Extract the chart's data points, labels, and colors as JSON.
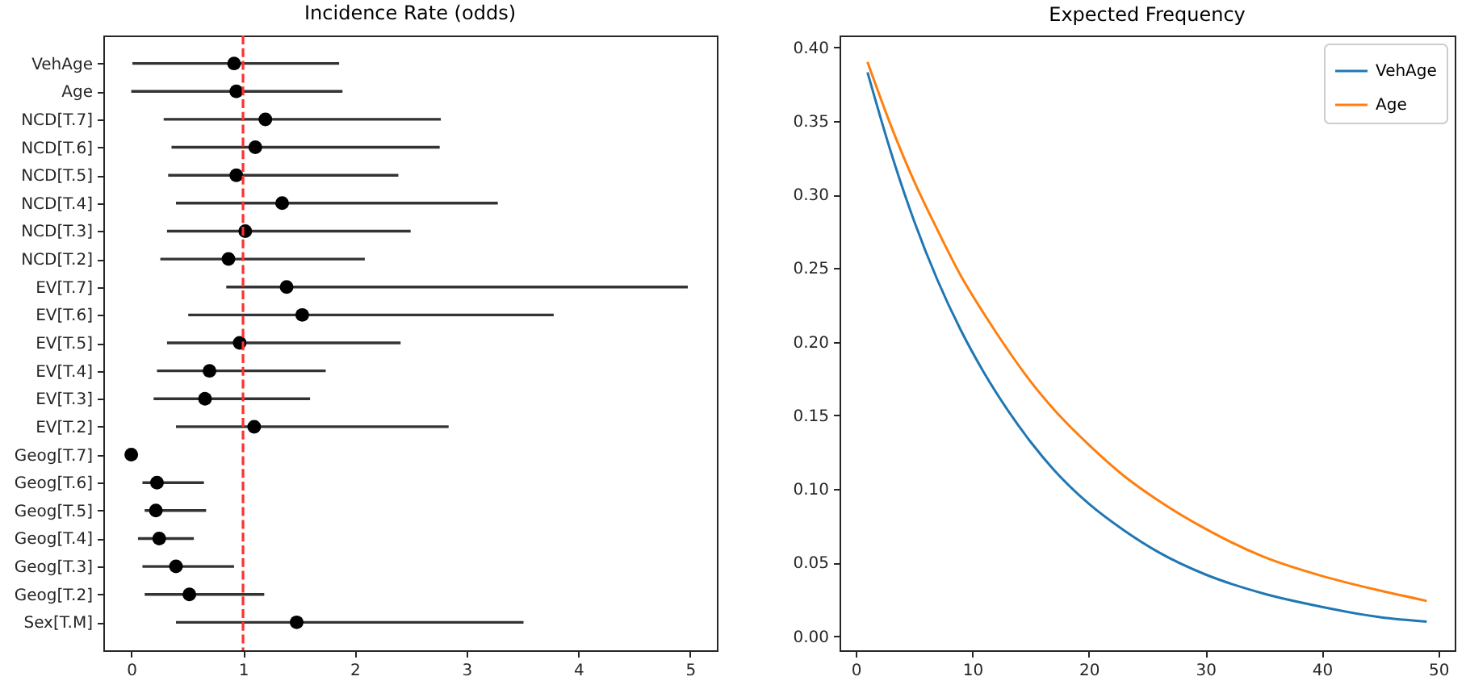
{
  "chart_data": [
    {
      "type": "scatter",
      "title": "Incidence Rate (odds)",
      "orientation": "horizontal",
      "marker": "circle",
      "color": "#000000",
      "categories": [
        "VehAge",
        "Age",
        "NCD[T.7]",
        "NCD[T.6]",
        "NCD[T.5]",
        "NCD[T.4]",
        "NCD[T.3]",
        "NCD[T.2]",
        "EV[T.7]",
        "EV[T.6]",
        "EV[T.5]",
        "EV[T.4]",
        "EV[T.3]",
        "EV[T.2]",
        "Geog[T.7]",
        "Geog[T.6]",
        "Geog[T.5]",
        "Geog[T.4]",
        "Geog[T.3]",
        "Geog[T.2]",
        "Sex[T.M]"
      ],
      "values": [
        0.92,
        0.94,
        1.2,
        1.11,
        0.94,
        1.35,
        1.02,
        0.87,
        1.39,
        1.53,
        0.97,
        0.7,
        0.66,
        1.1,
        0.0,
        0.23,
        0.22,
        0.25,
        0.4,
        0.52,
        1.48
      ],
      "errors": [
        [
          0.01,
          1.86
        ],
        [
          0.0,
          1.89
        ],
        [
          0.29,
          2.77
        ],
        [
          0.36,
          2.76
        ],
        [
          0.33,
          2.39
        ],
        [
          0.4,
          3.28
        ],
        [
          0.32,
          2.5
        ],
        [
          0.26,
          2.09
        ],
        [
          0.85,
          4.98
        ],
        [
          0.51,
          3.78
        ],
        [
          0.32,
          2.41
        ],
        [
          0.23,
          1.74
        ],
        [
          0.2,
          1.6
        ],
        [
          0.4,
          2.84
        ],
        null,
        [
          0.1,
          0.65
        ],
        [
          0.12,
          0.67
        ],
        [
          0.06,
          0.56
        ],
        [
          0.1,
          0.92
        ],
        [
          0.12,
          1.19
        ],
        [
          0.4,
          3.51
        ]
      ],
      "xlim": [
        -0.25,
        5.24
      ],
      "xticks": [
        0,
        1,
        2,
        3,
        4,
        5
      ],
      "ref_lines": [
        {
          "axis": "x",
          "value": 1,
          "color": "#ff3030",
          "line_style": "dashed"
        }
      ]
    },
    {
      "type": "line",
      "title": "Expected Frequency",
      "legend": "top right",
      "x": [
        1,
        3,
        5,
        7,
        9,
        11,
        13,
        15,
        17,
        20,
        23,
        26,
        30,
        35,
        40,
        45,
        49
      ],
      "series": [
        {
          "name": "VehAge",
          "color": "#1f77b4",
          "values": [
            0.383,
            0.329,
            0.282,
            0.242,
            0.208,
            0.179,
            0.154,
            0.132,
            0.113,
            0.09,
            0.072,
            0.057,
            0.042,
            0.029,
            0.02,
            0.013,
            0.01
          ]
        },
        {
          "name": "Age",
          "color": "#ff7f0e",
          "values": [
            0.39,
            0.347,
            0.309,
            0.276,
            0.245,
            0.219,
            0.195,
            0.173,
            0.154,
            0.13,
            0.109,
            0.092,
            0.073,
            0.054,
            0.041,
            0.031,
            0.024
          ]
        }
      ],
      "xlim": [
        -1.4,
        51.4
      ],
      "xticks": [
        0,
        10,
        20,
        30,
        40,
        50
      ],
      "ylim": [
        -0.0095,
        0.408
      ],
      "yticks": [
        {
          "value": 0,
          "label": "0.00"
        },
        0.05,
        {
          "value": 0.1,
          "label": "0.10"
        },
        0.15,
        {
          "value": 0.2,
          "label": "0.20"
        },
        0.25,
        {
          "value": 0.3,
          "label": "0.30"
        },
        0.35,
        {
          "value": 0.4,
          "label": "0.40"
        }
      ]
    }
  ]
}
